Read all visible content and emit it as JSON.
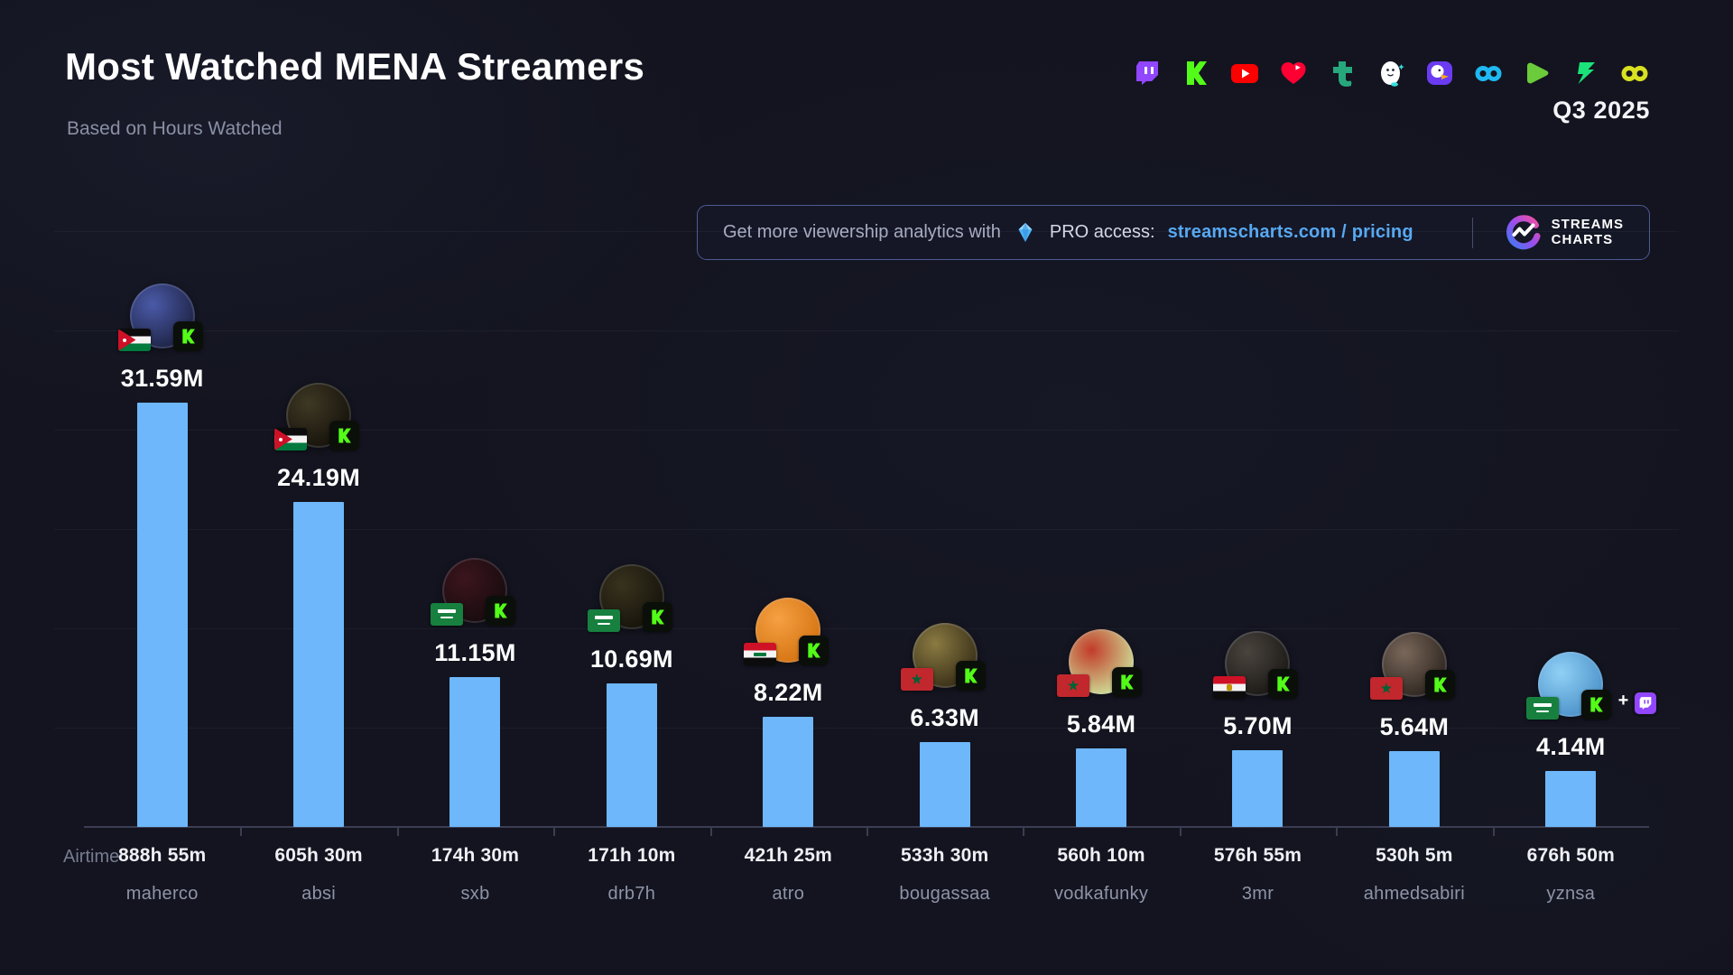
{
  "header": {
    "title": "Most Watched MENA Streamers",
    "subtitle": "Based on Hours Watched",
    "period": "Q3 2025",
    "platform_icons": [
      "twitch",
      "kick",
      "youtube",
      "youtube-gaming",
      "trovo",
      "bigo-live",
      "parti",
      "soop",
      "rumble",
      "chzzk",
      "infinity"
    ]
  },
  "promo_banner": {
    "lead_text": "Get more viewership analytics with",
    "pro_text": "PRO access:",
    "link_text": "streamscharts.com / pricing",
    "link_color": "#57a9f2",
    "brand_line1": "STREAMS",
    "brand_line2": "CHARTS"
  },
  "theme": {
    "background": "#13141f",
    "bar_color": "#6db7fa",
    "axis_color": "#3b3e52",
    "kick_green": "#53fc18",
    "twitch_purple": "#9146ff"
  },
  "chart_data": {
    "type": "bar",
    "title": "Most Watched MENA Streamers",
    "subtitle": "Based on Hours Watched",
    "period": "Q3 2025",
    "unit": "Hours Watched (millions)",
    "ylim": [
      0,
      32
    ],
    "grid": true,
    "legend": "none",
    "bar_color": "#6db7fa",
    "axis_row_label": "Airtime",
    "categories": [
      "maherco",
      "absi",
      "sxb",
      "drb7h",
      "atro",
      "bougassaa",
      "vodkafunky",
      "3mr",
      "ahmedsabiri",
      "yznsa"
    ],
    "values": [
      31.59,
      24.19,
      11.15,
      10.69,
      8.22,
      6.33,
      5.84,
      5.7,
      5.64,
      4.14
    ],
    "value_labels": [
      "31.59M",
      "24.19M",
      "11.15M",
      "10.69M",
      "8.22M",
      "6.33M",
      "5.84M",
      "5.70M",
      "5.64M",
      "4.14M"
    ],
    "airtime": [
      "888h 55m",
      "605h 30m",
      "174h 30m",
      "171h 10m",
      "421h 25m",
      "533h 30m",
      "560h 10m",
      "576h 55m",
      "530h 5m",
      "676h 50m"
    ],
    "streamers": [
      {
        "name": "maherco",
        "hours_watched_label": "31.59M",
        "hours_watched_millions": 31.59,
        "airtime": "888h 55m",
        "country": "jordan",
        "flag": "jo",
        "platforms": [
          "kick"
        ],
        "avatar_colors": [
          "#4a5aa8",
          "#1c2140"
        ]
      },
      {
        "name": "absi",
        "hours_watched_label": "24.19M",
        "hours_watched_millions": 24.19,
        "airtime": "605h 30m",
        "country": "jordan",
        "flag": "jo",
        "platforms": [
          "kick"
        ],
        "avatar_colors": [
          "#3e3824",
          "#15110a"
        ]
      },
      {
        "name": "sxb",
        "hours_watched_label": "11.15M",
        "hours_watched_millions": 11.15,
        "airtime": "174h 30m",
        "country": "saudi-arabia",
        "flag": "sa",
        "platforms": [
          "kick"
        ],
        "avatar_colors": [
          "#3c151d",
          "#150b0e"
        ]
      },
      {
        "name": "drb7h",
        "hours_watched_label": "10.69M",
        "hours_watched_millions": 10.69,
        "airtime": "171h 10m",
        "country": "saudi-arabia",
        "flag": "sa",
        "platforms": [
          "kick"
        ],
        "avatar_colors": [
          "#38321d",
          "#15120b"
        ]
      },
      {
        "name": "atro",
        "hours_watched_label": "8.22M",
        "hours_watched_millions": 8.22,
        "airtime": "421h 25m",
        "country": "iraq",
        "flag": "iq",
        "platforms": [
          "kick"
        ],
        "avatar_colors": [
          "#f5a043",
          "#d4720f"
        ]
      },
      {
        "name": "bougassaa",
        "hours_watched_label": "6.33M",
        "hours_watched_millions": 6.33,
        "airtime": "533h 30m",
        "country": "morocco",
        "flag": "ma",
        "platforms": [
          "kick"
        ],
        "avatar_colors": [
          "#8a7a42",
          "#352c16"
        ]
      },
      {
        "name": "vodkafunky",
        "hours_watched_label": "5.84M",
        "hours_watched_millions": 5.84,
        "airtime": "560h 10m",
        "country": "morocco",
        "flag": "ma",
        "platforms": [
          "kick"
        ],
        "avatar_colors": [
          "#c23b2a",
          "#cfe49a"
        ]
      },
      {
        "name": "3mr",
        "hours_watched_label": "5.70M",
        "hours_watched_millions": 5.7,
        "airtime": "576h 55m",
        "country": "egypt",
        "flag": "eg",
        "platforms": [
          "kick"
        ],
        "avatar_colors": [
          "#4a443e",
          "#191714"
        ]
      },
      {
        "name": "ahmedsabiri",
        "hours_watched_label": "5.64M",
        "hours_watched_millions": 5.64,
        "airtime": "530h 5m",
        "country": "morocco",
        "flag": "ma",
        "platforms": [
          "kick"
        ],
        "avatar_colors": [
          "#7a675a",
          "#2a231d"
        ]
      },
      {
        "name": "yznsa",
        "hours_watched_label": "4.14M",
        "hours_watched_millions": 4.14,
        "airtime": "676h 50m",
        "country": "saudi-arabia",
        "flag": "sa",
        "platforms": [
          "kick",
          "twitch"
        ],
        "avatar_colors": [
          "#8fd0f5",
          "#4a90c8"
        ]
      }
    ]
  }
}
